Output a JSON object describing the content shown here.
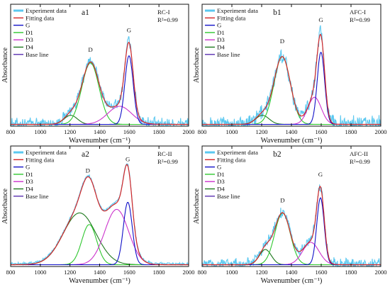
{
  "chart_data": [
    {
      "id": "a1",
      "type": "line",
      "panel_label": "a1",
      "sample": "RC-I",
      "r2": "R²=0.99",
      "xlabel": "Wavenumber (cm⁻¹)",
      "ylabel": "Absorbance",
      "xlim": [
        800,
        2000
      ],
      "xticks": [
        800,
        1000,
        1200,
        1400,
        1600,
        1800,
        2000
      ],
      "ylim": [
        0,
        1.35
      ],
      "peak_labels": [
        {
          "text": "D",
          "x": 1338
        },
        {
          "text": "G",
          "x": 1598
        }
      ],
      "legend": {
        "placement": "top-left",
        "entries": [
          "Experiment data",
          "Fitting data",
          "G",
          "D1",
          "D3",
          "D4",
          "Base line"
        ]
      },
      "components": [
        {
          "name": "G",
          "center": 1598,
          "height": 0.76,
          "width": 28
        },
        {
          "name": "D1",
          "center": 1338,
          "height": 0.68,
          "width": 58
        },
        {
          "name": "D3",
          "center": 1535,
          "height": 0.2,
          "width": 80
        },
        {
          "name": "D4",
          "center": 1205,
          "height": 0.1,
          "width": 45
        }
      ],
      "noise": 0.05
    },
    {
      "id": "b1",
      "type": "line",
      "panel_label": "b1",
      "sample": "AFC-I",
      "r2": "R²=0.99",
      "xlabel": "Wavenumber (cm⁻¹)",
      "ylabel": "Absorbance",
      "xlim": [
        800,
        2000
      ],
      "xticks": [
        800,
        1000,
        1200,
        1400,
        1600,
        1800,
        2000
      ],
      "ylim": [
        0,
        1.35
      ],
      "peak_labels": [
        {
          "text": "D",
          "x": 1338
        },
        {
          "text": "G",
          "x": 1598
        }
      ],
      "legend": {
        "placement": "top-left",
        "entries": [
          "Experiment data",
          "Fitting data",
          "G",
          "D1",
          "D3",
          "D4",
          "Base line"
        ]
      },
      "components": [
        {
          "name": "G",
          "center": 1598,
          "height": 0.8,
          "width": 25
        },
        {
          "name": "D1",
          "center": 1338,
          "height": 0.75,
          "width": 55
        },
        {
          "name": "D3",
          "center": 1555,
          "height": 0.3,
          "width": 45
        },
        {
          "name": "D4",
          "center": 1205,
          "height": 0.1,
          "width": 45
        }
      ],
      "noise": 0.07
    },
    {
      "id": "a2",
      "type": "line",
      "panel_label": "a2",
      "sample": "RC-II",
      "r2": "R²=0.99",
      "xlabel": "Wavenumber (cm⁻¹)",
      "ylabel": "Absorbance",
      "xlim": [
        800,
        2000
      ],
      "xticks": [
        800,
        1000,
        1200,
        1400,
        1600,
        1800,
        2000
      ],
      "ylim": [
        0,
        1.35
      ],
      "peak_labels": [
        {
          "text": "D",
          "x": 1320
        },
        {
          "text": "G",
          "x": 1590
        }
      ],
      "legend": {
        "placement": "top-left",
        "entries": [
          "Experiment data",
          "Fitting data",
          "G",
          "D1",
          "D3",
          "D4",
          "Base line"
        ]
      },
      "components": [
        {
          "name": "G",
          "center": 1590,
          "height": 0.7,
          "width": 30
        },
        {
          "name": "D1",
          "center": 1330,
          "height": 0.45,
          "width": 50
        },
        {
          "name": "D3",
          "center": 1515,
          "height": 0.62,
          "width": 80
        },
        {
          "name": "D4",
          "center": 1265,
          "height": 0.58,
          "width": 110
        }
      ],
      "noise": 0.012
    },
    {
      "id": "b2",
      "type": "line",
      "panel_label": "b2",
      "sample": "AFC-II",
      "r2": "R²=0.99",
      "xlabel": "Wavenumber (cm⁻¹)",
      "ylabel": "Absorbance",
      "xlim": [
        800,
        2000
      ],
      "xticks": [
        800,
        1000,
        1200,
        1400,
        1600,
        1800,
        2000
      ],
      "ylim": [
        0,
        1.35
      ],
      "peak_labels": [
        {
          "text": "D",
          "x": 1340
        },
        {
          "text": "G",
          "x": 1595
        }
      ],
      "legend": {
        "placement": "top-left",
        "entries": [
          "Experiment data",
          "Fitting data",
          "G",
          "D1",
          "D3",
          "D4",
          "Base line"
        ]
      },
      "components": [
        {
          "name": "G",
          "center": 1595,
          "height": 0.75,
          "width": 25
        },
        {
          "name": "D1",
          "center": 1340,
          "height": 0.58,
          "width": 52
        },
        {
          "name": "D3",
          "center": 1530,
          "height": 0.25,
          "width": 55
        },
        {
          "name": "D4",
          "center": 1225,
          "height": 0.17,
          "width": 40
        }
      ],
      "noise": 0.05
    }
  ],
  "colors": {
    "experiment": "#5bc8f0",
    "fitting": "#d62728",
    "G": "#1010c8",
    "D1": "#2fc72f",
    "D3": "#cc33cc",
    "D4": "#1e7a1e",
    "baseline": "#5a30b0",
    "axis": "#111111"
  }
}
